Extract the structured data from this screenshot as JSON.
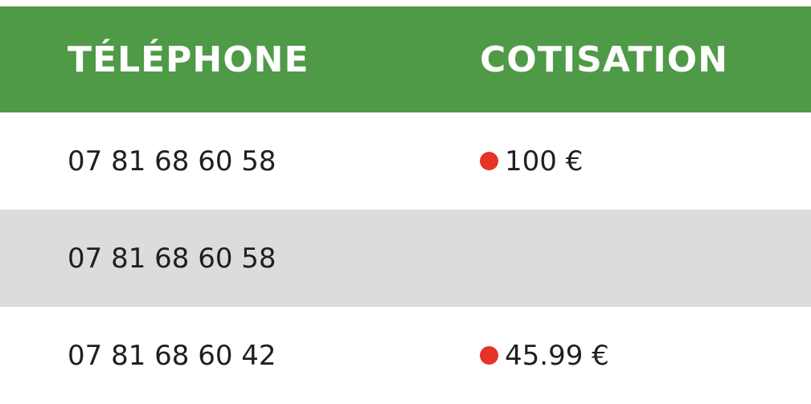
{
  "table": {
    "header": {
      "telephone": "TÉLÉPHONE",
      "cotisation": "COTISATION"
    },
    "rows": [
      {
        "telephone": "07 81 68 60 58",
        "cotisation": "100 €",
        "status_color": "#e53325"
      },
      {
        "telephone": "07 81 68 60 58",
        "cotisation": "",
        "status_color": ""
      },
      {
        "telephone": "07 81 68 60 42",
        "cotisation": "45.99 €",
        "status_color": "#e53325"
      }
    ],
    "colors": {
      "header_bg": "#4f9a47",
      "alt_row_bg": "#dcdcdc",
      "status_dot": "#e53325"
    }
  }
}
